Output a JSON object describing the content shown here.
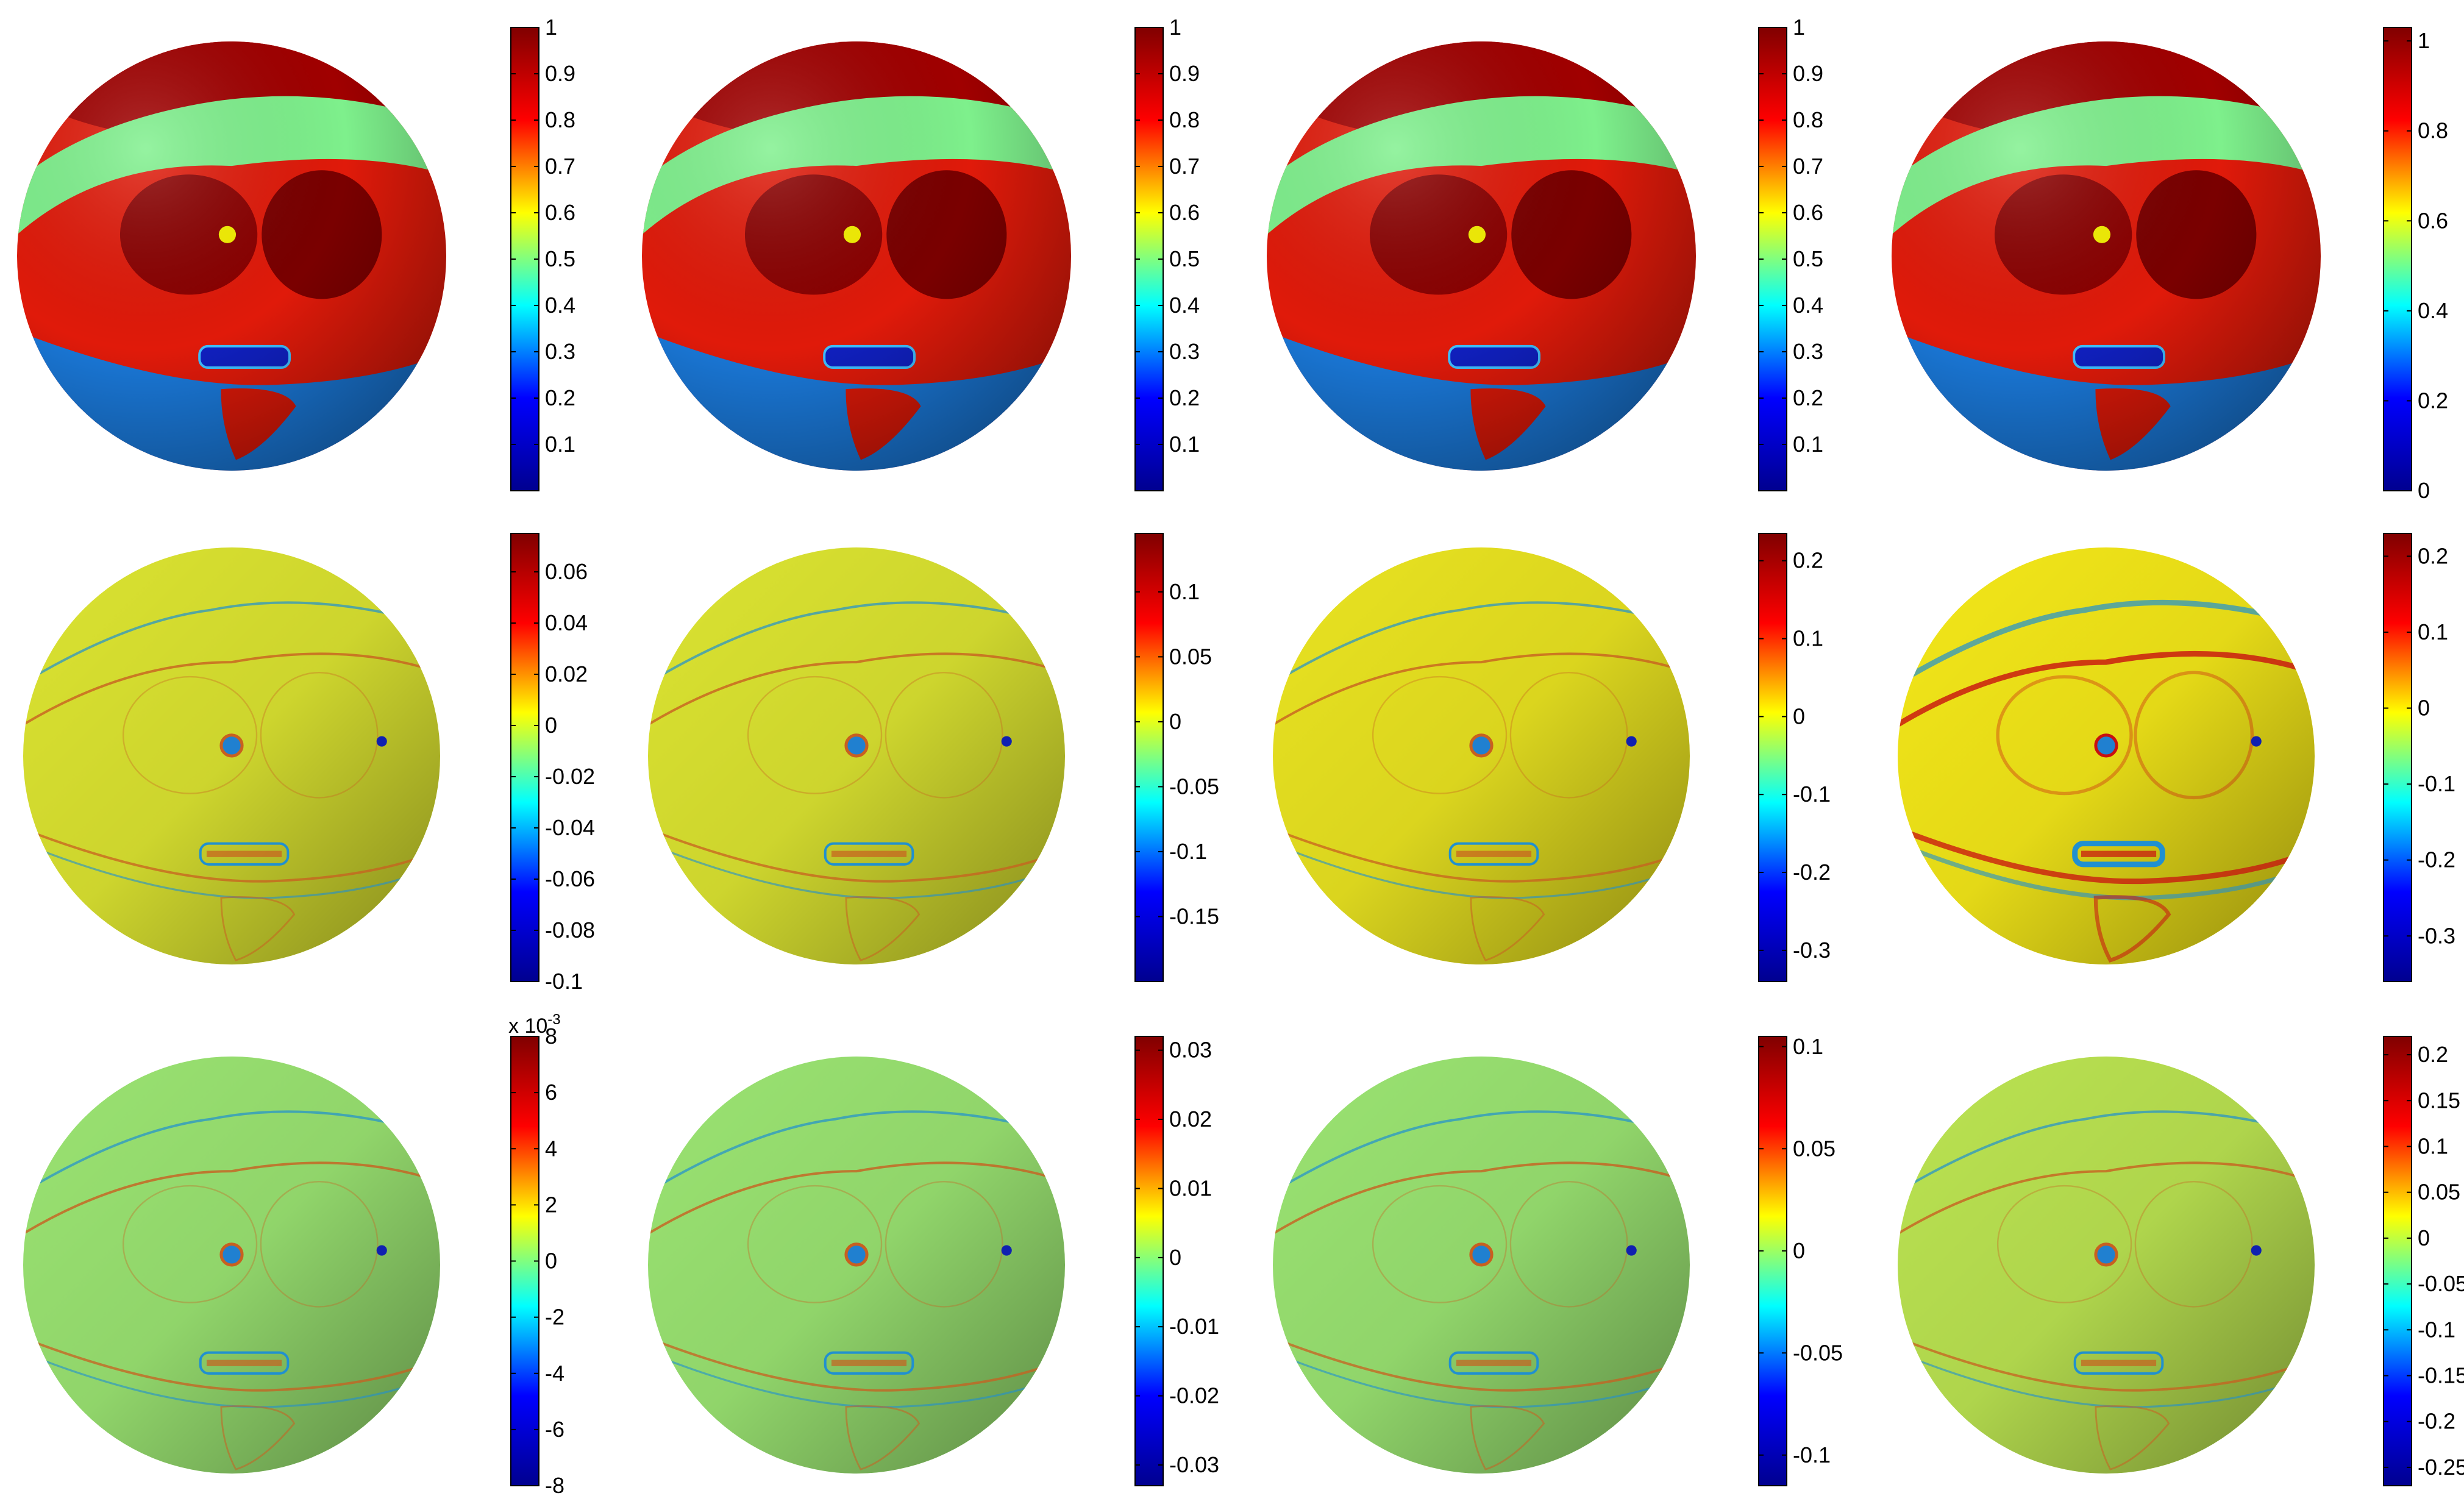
{
  "figure": {
    "colormap": "jet",
    "colormap_stops": [
      "#00008f",
      "#0000ff",
      "#00ffff",
      "#ffff00",
      "#ff0000",
      "#800000"
    ]
  },
  "chart_data": [
    {
      "type": "heatmap",
      "row": 1,
      "col": 1,
      "surface": "sphere",
      "pattern": "full",
      "clim": [
        0,
        1
      ],
      "ticks": [
        0.1,
        0.2,
        0.3,
        0.4,
        0.5,
        0.6,
        0.7,
        0.8,
        0.9,
        1
      ],
      "tick_labels": [
        "0.1",
        "0.2",
        "0.3",
        "0.4",
        "0.5",
        "0.6",
        "0.7",
        "0.8",
        "0.9",
        "1"
      ]
    },
    {
      "type": "heatmap",
      "row": 1,
      "col": 2,
      "surface": "sphere",
      "pattern": "full",
      "clim": [
        0,
        1
      ],
      "ticks": [
        0.1,
        0.2,
        0.3,
        0.4,
        0.5,
        0.6,
        0.7,
        0.8,
        0.9,
        1
      ],
      "tick_labels": [
        "0.1",
        "0.2",
        "0.3",
        "0.4",
        "0.5",
        "0.6",
        "0.7",
        "0.8",
        "0.9",
        "1"
      ]
    },
    {
      "type": "heatmap",
      "row": 1,
      "col": 3,
      "surface": "sphere",
      "pattern": "full",
      "clim": [
        0,
        1
      ],
      "ticks": [
        0.1,
        0.2,
        0.3,
        0.4,
        0.5,
        0.6,
        0.7,
        0.8,
        0.9,
        1
      ],
      "tick_labels": [
        "0.1",
        "0.2",
        "0.3",
        "0.4",
        "0.5",
        "0.6",
        "0.7",
        "0.8",
        "0.9",
        "1"
      ]
    },
    {
      "type": "heatmap",
      "row": 1,
      "col": 4,
      "surface": "sphere",
      "pattern": "full",
      "clim": [
        0,
        1.03
      ],
      "ticks": [
        0,
        0.2,
        0.4,
        0.6,
        0.8,
        1
      ],
      "tick_labels": [
        "0",
        "0.2",
        "0.4",
        "0.6",
        "0.8",
        "1"
      ]
    },
    {
      "type": "heatmap",
      "row": 2,
      "col": 1,
      "surface": "sphere",
      "pattern": "error",
      "clim": [
        -0.1,
        0.075
      ],
      "ticks": [
        -0.1,
        -0.08,
        -0.06,
        -0.04,
        -0.02,
        0,
        0.02,
        0.04,
        0.06
      ],
      "tick_labels": [
        "-0.1",
        "-0.08",
        "-0.06",
        "-0.04",
        "-0.02",
        "0",
        "0.02",
        "0.04",
        "0.06"
      ]
    },
    {
      "type": "heatmap",
      "row": 2,
      "col": 2,
      "surface": "sphere",
      "pattern": "error",
      "clim": [
        -0.2,
        0.145
      ],
      "ticks": [
        -0.15,
        -0.1,
        -0.05,
        0,
        0.05,
        0.1
      ],
      "tick_labels": [
        "-0.15",
        "-0.1",
        "-0.05",
        "0",
        "0.05",
        "0.1"
      ]
    },
    {
      "type": "heatmap",
      "row": 2,
      "col": 3,
      "surface": "sphere",
      "pattern": "error",
      "clim": [
        -0.34,
        0.235
      ],
      "ticks": [
        -0.3,
        -0.2,
        -0.1,
        0,
        0.1,
        0.2
      ],
      "tick_labels": [
        "-0.3",
        "-0.2",
        "-0.1",
        "0",
        "0.1",
        "0.2"
      ]
    },
    {
      "type": "heatmap",
      "row": 2,
      "col": 4,
      "surface": "sphere",
      "pattern": "error-strong",
      "clim": [
        -0.36,
        0.23
      ],
      "ticks": [
        -0.3,
        -0.2,
        -0.1,
        0,
        0.1,
        0.2
      ],
      "tick_labels": [
        "-0.3",
        "-0.2",
        "-0.1",
        "0",
        "0.1",
        "0.2"
      ]
    },
    {
      "type": "heatmap",
      "row": 3,
      "col": 1,
      "surface": "sphere",
      "pattern": "residual",
      "clim": [
        -8,
        8
      ],
      "ticks": [
        -8,
        -6,
        -4,
        -2,
        0,
        2,
        4,
        6,
        8
      ],
      "tick_labels": [
        "-8",
        "-6",
        "-4",
        "-2",
        "0",
        "2",
        "4",
        "6",
        "8"
      ],
      "exponent_label": [
        "x 10",
        "-3"
      ]
    },
    {
      "type": "heatmap",
      "row": 3,
      "col": 2,
      "surface": "sphere",
      "pattern": "residual",
      "clim": [
        -0.033,
        0.032
      ],
      "ticks": [
        -0.03,
        -0.02,
        -0.01,
        0,
        0.01,
        0.02,
        0.03
      ],
      "tick_labels": [
        "-0.03",
        "-0.02",
        "-0.01",
        "0",
        "0.01",
        "0.02",
        "0.03"
      ]
    },
    {
      "type": "heatmap",
      "row": 3,
      "col": 3,
      "surface": "sphere",
      "pattern": "residual",
      "clim": [
        -0.115,
        0.105
      ],
      "ticks": [
        -0.1,
        -0.05,
        0,
        0.05,
        0.1
      ],
      "tick_labels": [
        "-0.1",
        "-0.05",
        "0",
        "0.05",
        "0.1"
      ]
    },
    {
      "type": "heatmap",
      "row": 3,
      "col": 4,
      "surface": "sphere",
      "pattern": "residual",
      "clim": [
        -0.27,
        0.22
      ],
      "ticks": [
        -0.25,
        -0.2,
        -0.15,
        -0.1,
        -0.05,
        0,
        0.05,
        0.1,
        0.15,
        0.2
      ],
      "tick_labels": [
        "-0.25",
        "-0.2",
        "-0.15",
        "-0.1",
        "-0.05",
        "0",
        "0.05",
        "0.1",
        "0.15",
        "0.2"
      ]
    }
  ]
}
